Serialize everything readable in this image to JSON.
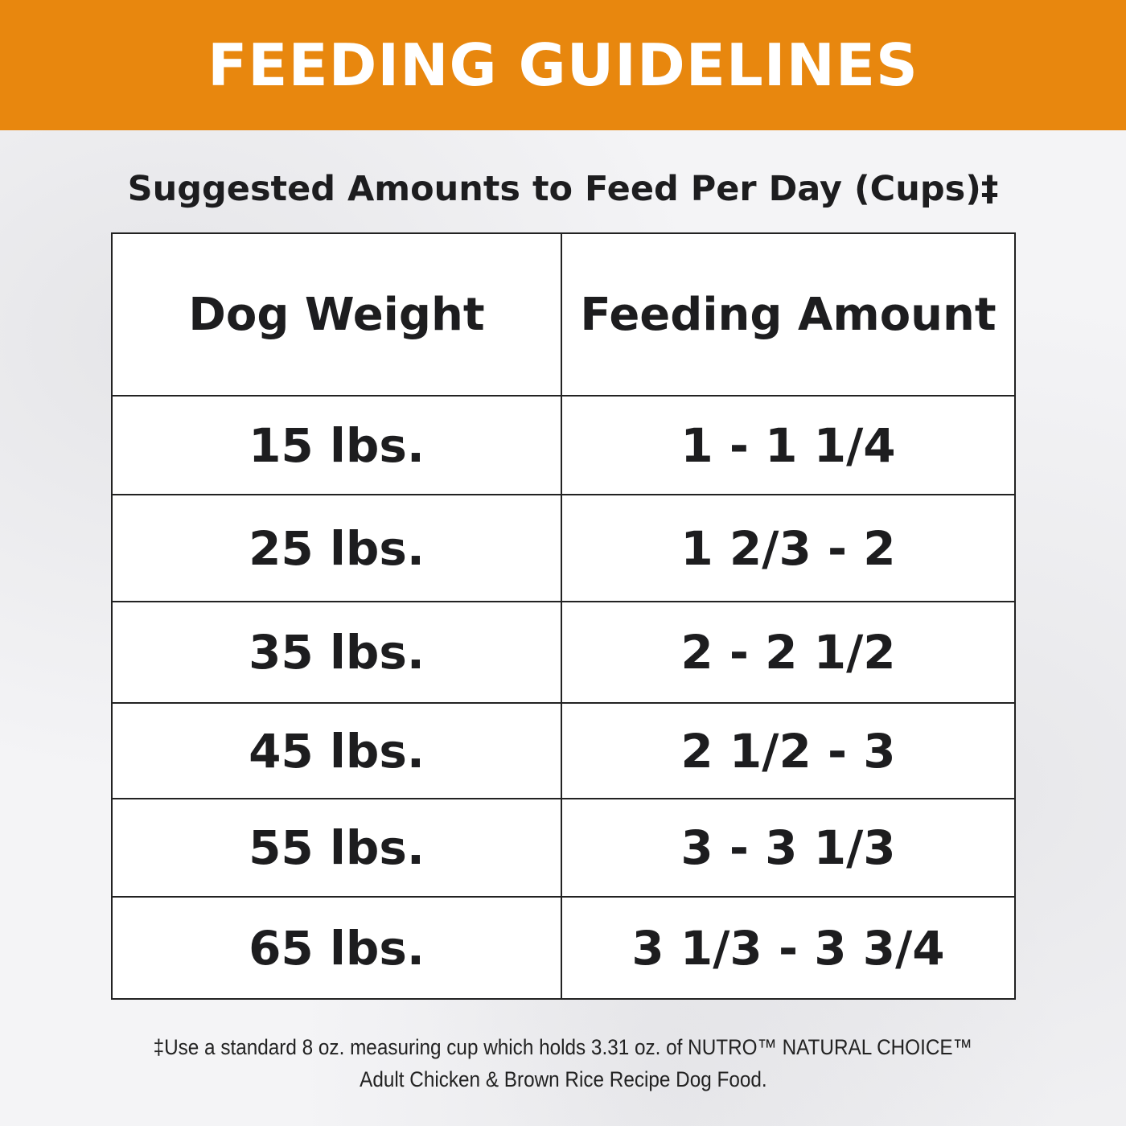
{
  "banner": {
    "title": "FEEDING GUIDELINES",
    "color": "#E8870E"
  },
  "subtitle": "Suggested Amounts to Feed Per Day (Cups)‡",
  "table": {
    "headers": [
      "Dog Weight",
      "Feeding Amount"
    ],
    "rows": [
      [
        "15 lbs.",
        "1 - 1 1/4"
      ],
      [
        "25 lbs.",
        "1 2/3 - 2"
      ],
      [
        "35 lbs.",
        "2 - 2 1/2"
      ],
      [
        "45 lbs.",
        "2 1/2 - 3"
      ],
      [
        "55 lbs.",
        "3 - 3 1/3"
      ],
      [
        "65 lbs.",
        "3 1/3 - 3 3/4"
      ]
    ]
  },
  "footnote": {
    "line1": "‡Use a standard 8 oz. measuring cup which holds 3.31 oz. of NUTRO™ NATURAL CHOICE™",
    "line2": "Adult Chicken & Brown Rice Recipe Dog Food."
  }
}
